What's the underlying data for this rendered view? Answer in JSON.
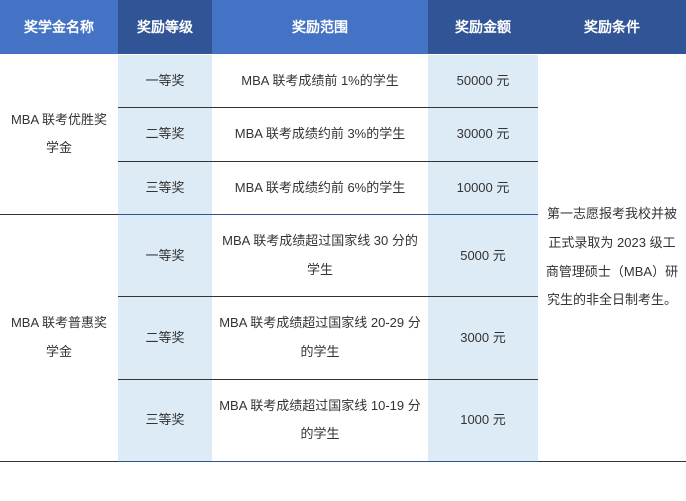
{
  "colors": {
    "header_bg_a": "#4472c4",
    "header_bg_b": "#305496",
    "cell_bg_a": "#ddebf7",
    "cell_bg_b": "#ffffff",
    "border_light": "#9bc2e6",
    "border_dark": "#2f5496",
    "text_dark": "#333333",
    "header_text": "#ffffff"
  },
  "headers": {
    "name": "奖学金名称",
    "level": "奖励等级",
    "scope": "奖励范围",
    "amount": "奖励金额",
    "condition": "奖励条件"
  },
  "condition_text": "第一志愿报考我校并被正式录取为 2023 级工商管理硕士（MBA）研究生的非全日制考生。",
  "groups": [
    {
      "name": "MBA 联考优胜奖学金",
      "rows": [
        {
          "level": "一等奖",
          "scope": "MBA 联考成绩前 1%的学生",
          "amount": "50000 元"
        },
        {
          "level": "二等奖",
          "scope": "MBA 联考成绩约前 3%的学生",
          "amount": "30000 元"
        },
        {
          "level": "三等奖",
          "scope": "MBA 联考成绩约前 6%的学生",
          "amount": "10000 元"
        }
      ]
    },
    {
      "name": "MBA 联考普惠奖学金",
      "rows": [
        {
          "level": "一等奖",
          "scope": "MBA 联考成绩超过国家线 30 分的学生",
          "amount": "5000 元"
        },
        {
          "level": "二等奖",
          "scope": "MBA 联考成绩超过国家线 20-29 分的学生",
          "amount": "3000 元"
        },
        {
          "level": "三等奖",
          "scope": "MBA 联考成绩超过国家线 10-19 分的学生",
          "amount": "1000 元"
        }
      ]
    }
  ]
}
